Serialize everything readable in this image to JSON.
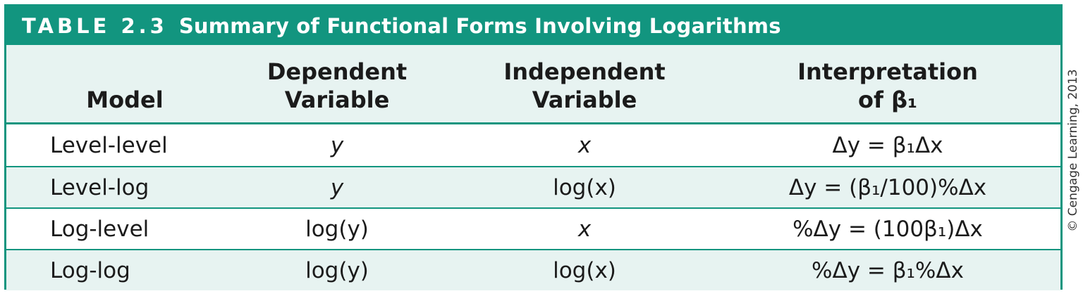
{
  "table": {
    "number": "TABLE 2.3",
    "title": "Summary of Functional Forms Involving Logarithms",
    "headers": {
      "model": "Model",
      "dependent_line1": "Dependent",
      "dependent_line2": "Variable",
      "independent_line1": "Independent",
      "independent_line2": "Variable",
      "interpretation_line1": "Interpretation",
      "interpretation_line2": "of β₁"
    },
    "rows": [
      {
        "model": "Level-level",
        "dependent": "y",
        "independent": "x",
        "interpretation": "Δy = β₁Δx"
      },
      {
        "model": "Level-log",
        "dependent": "y",
        "independent": "log(x)",
        "interpretation": "Δy = (β₁/100)%Δx"
      },
      {
        "model": "Log-level",
        "dependent": "log(y)",
        "independent": "x",
        "interpretation": "%Δy = (100β₁)Δx"
      },
      {
        "model": "Log-log",
        "dependent": "log(y)",
        "independent": "log(x)",
        "interpretation": "%Δy = β₁%Δx"
      }
    ]
  },
  "copyright": "© Cengage Learning, 2013",
  "colors": {
    "accent": "#12957f",
    "shade": "#e7f3f1"
  }
}
